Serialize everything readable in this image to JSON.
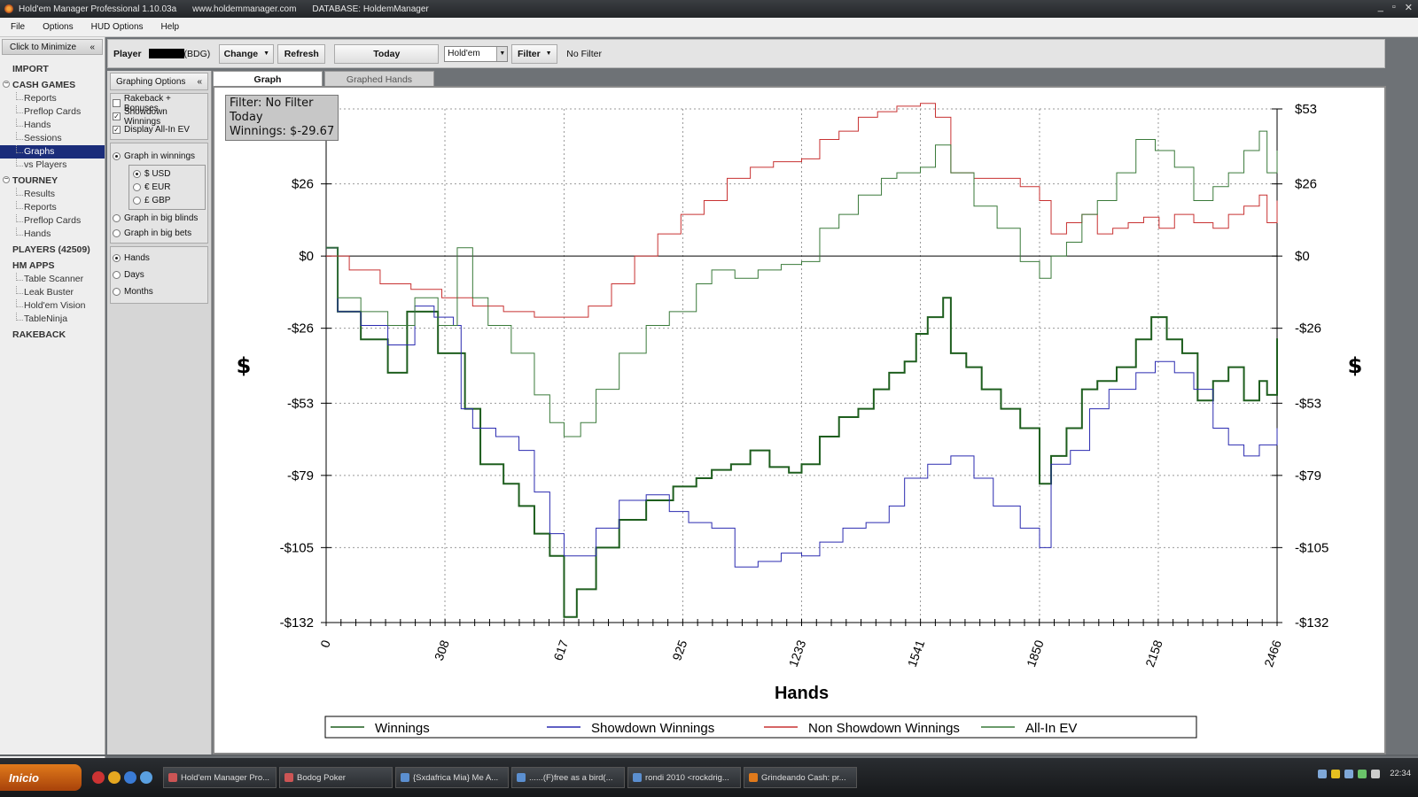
{
  "window": {
    "title": "Hold'em Manager Professional 1.10.03a",
    "url": "www.holdemmanager.com",
    "database": "DATABASE: HoldemManager",
    "controls": [
      "_",
      "▫",
      "✕"
    ]
  },
  "menu": [
    "File",
    "Options",
    "HUD Options",
    "Help"
  ],
  "sidebar": {
    "minimize_label": "Click to Minimize",
    "minimize_icon": "«",
    "sections": [
      {
        "label": "IMPORT",
        "items": []
      },
      {
        "label": "CASH GAMES",
        "expand": "−",
        "items": [
          "Reports",
          "Preflop Cards",
          "Hands",
          "Sessions",
          "Graphs",
          "vs Players"
        ]
      },
      {
        "label": "TOURNEY",
        "expand": "−",
        "items": [
          "Results",
          "Reports",
          "Preflop Cards",
          "Hands"
        ]
      },
      {
        "label": "PLAYERS (42509)",
        "items": []
      },
      {
        "label": "HM APPS",
        "items": [
          "Table Scanner",
          "Leak Buster",
          "Hold'em Vision",
          "TableNinja"
        ]
      },
      {
        "label": "RAKEBACK",
        "items": []
      }
    ],
    "active_item": "Graphs"
  },
  "toolbar": {
    "player_label": "Player",
    "player_site": "(BDG)",
    "change_label": "Change",
    "refresh_label": "Refresh",
    "date_label": "Today",
    "game_select": "Hold'em",
    "filter_label": "Filter",
    "filter_status": "No Filter"
  },
  "options": {
    "header": "Graphing Options",
    "collapse_icon": "«",
    "checkboxes": [
      {
        "label": "Rakeback + Bonuses",
        "checked": false
      },
      {
        "label": "Showdown Winnings",
        "checked": true
      },
      {
        "label": "Display All-In EV",
        "checked": true
      }
    ],
    "graph_in_winnings": "Graph in winnings",
    "currencies": [
      {
        "label": "$ USD",
        "selected": true
      },
      {
        "label": "€ EUR",
        "selected": false
      },
      {
        "label": "£ GBP",
        "selected": false
      }
    ],
    "graph_in_big_blinds": "Graph in big blinds",
    "graph_in_big_bets": "Graph in big bets",
    "x_axis_options": [
      {
        "label": "Hands",
        "selected": true
      },
      {
        "label": "Days",
        "selected": false
      },
      {
        "label": "Months",
        "selected": false
      }
    ]
  },
  "tabs": [
    {
      "label": "Graph",
      "active": true
    },
    {
      "label": "Graphed Hands",
      "active": false
    }
  ],
  "info_box": {
    "line1": "Filter: No Filter",
    "line2": "Today",
    "line3": "Winnings: $-29.67"
  },
  "chart_data": {
    "type": "line",
    "xlabel": "Hands",
    "ylabel": "$",
    "xlim": [
      0,
      2466
    ],
    "ylim": [
      -132,
      53
    ],
    "x_ticks": [
      0,
      308,
      617,
      925,
      1233,
      1541,
      1850,
      2158,
      2466
    ],
    "y_ticks": [
      53,
      26,
      0,
      -26,
      -53,
      -79,
      -105,
      -132
    ],
    "y_tick_labels": [
      "$53",
      "$26",
      "$0",
      "-$26",
      "-$53",
      "-$79",
      "-$105",
      "-$132"
    ],
    "grid": true,
    "legend_position": "bottom",
    "series": [
      {
        "name": "Winnings",
        "color": "#1e5e1e",
        "width": 2,
        "points": [
          [
            0,
            3
          ],
          [
            30,
            -20
          ],
          [
            90,
            -30
          ],
          [
            160,
            -42
          ],
          [
            210,
            -20
          ],
          [
            290,
            -35
          ],
          [
            340,
            -35
          ],
          [
            360,
            -55
          ],
          [
            400,
            -75
          ],
          [
            460,
            -82
          ],
          [
            500,
            -90
          ],
          [
            540,
            -100
          ],
          [
            580,
            -108
          ],
          [
            617,
            -130
          ],
          [
            650,
            -120
          ],
          [
            700,
            -105
          ],
          [
            760,
            -95
          ],
          [
            830,
            -88
          ],
          [
            900,
            -83
          ],
          [
            960,
            -80
          ],
          [
            1000,
            -77
          ],
          [
            1050,
            -75
          ],
          [
            1100,
            -70
          ],
          [
            1150,
            -76
          ],
          [
            1200,
            -78
          ],
          [
            1233,
            -75
          ],
          [
            1280,
            -65
          ],
          [
            1330,
            -58
          ],
          [
            1380,
            -55
          ],
          [
            1420,
            -48
          ],
          [
            1460,
            -42
          ],
          [
            1500,
            -38
          ],
          [
            1530,
            -28
          ],
          [
            1560,
            -22
          ],
          [
            1600,
            -15
          ],
          [
            1620,
            -35
          ],
          [
            1660,
            -40
          ],
          [
            1700,
            -48
          ],
          [
            1750,
            -55
          ],
          [
            1800,
            -62
          ],
          [
            1850,
            -82
          ],
          [
            1880,
            -72
          ],
          [
            1920,
            -62
          ],
          [
            1960,
            -48
          ],
          [
            2000,
            -45
          ],
          [
            2050,
            -40
          ],
          [
            2100,
            -30
          ],
          [
            2140,
            -22
          ],
          [
            2180,
            -30
          ],
          [
            2220,
            -35
          ],
          [
            2260,
            -52
          ],
          [
            2300,
            -45
          ],
          [
            2340,
            -40
          ],
          [
            2380,
            -52
          ],
          [
            2420,
            -45
          ],
          [
            2440,
            -50
          ],
          [
            2466,
            -29.67
          ]
        ]
      },
      {
        "name": "Showdown Winnings",
        "color": "#2b2bb0",
        "width": 1,
        "points": [
          [
            0,
            3
          ],
          [
            30,
            -20
          ],
          [
            90,
            -25
          ],
          [
            160,
            -32
          ],
          [
            230,
            -18
          ],
          [
            280,
            -22
          ],
          [
            330,
            -25
          ],
          [
            350,
            -55
          ],
          [
            380,
            -62
          ],
          [
            440,
            -65
          ],
          [
            500,
            -70
          ],
          [
            540,
            -85
          ],
          [
            580,
            -100
          ],
          [
            617,
            -108
          ],
          [
            660,
            -108
          ],
          [
            700,
            -98
          ],
          [
            760,
            -88
          ],
          [
            830,
            -86
          ],
          [
            890,
            -92
          ],
          [
            940,
            -96
          ],
          [
            1000,
            -98
          ],
          [
            1060,
            -112
          ],
          [
            1120,
            -110
          ],
          [
            1180,
            -107
          ],
          [
            1233,
            -108
          ],
          [
            1280,
            -103
          ],
          [
            1340,
            -98
          ],
          [
            1400,
            -96
          ],
          [
            1460,
            -90
          ],
          [
            1500,
            -80
          ],
          [
            1560,
            -75
          ],
          [
            1620,
            -72
          ],
          [
            1680,
            -80
          ],
          [
            1730,
            -90
          ],
          [
            1800,
            -98
          ],
          [
            1850,
            -105
          ],
          [
            1880,
            -75
          ],
          [
            1930,
            -70
          ],
          [
            1980,
            -55
          ],
          [
            2030,
            -48
          ],
          [
            2100,
            -42
          ],
          [
            2150,
            -38
          ],
          [
            2200,
            -42
          ],
          [
            2250,
            -48
          ],
          [
            2300,
            -62
          ],
          [
            2340,
            -68
          ],
          [
            2380,
            -72
          ],
          [
            2420,
            -68
          ],
          [
            2466,
            -62
          ]
        ]
      },
      {
        "name": "Non Showdown Winnings",
        "color": "#c83232",
        "width": 1,
        "points": [
          [
            0,
            0
          ],
          [
            60,
            -5
          ],
          [
            140,
            -10
          ],
          [
            220,
            -12
          ],
          [
            300,
            -15
          ],
          [
            380,
            -18
          ],
          [
            460,
            -20
          ],
          [
            540,
            -22
          ],
          [
            617,
            -22
          ],
          [
            680,
            -18
          ],
          [
            740,
            -10
          ],
          [
            800,
            0
          ],
          [
            860,
            8
          ],
          [
            920,
            15
          ],
          [
            980,
            20
          ],
          [
            1040,
            28
          ],
          [
            1100,
            32
          ],
          [
            1160,
            34
          ],
          [
            1233,
            35
          ],
          [
            1280,
            42
          ],
          [
            1330,
            45
          ],
          [
            1380,
            50
          ],
          [
            1430,
            52
          ],
          [
            1480,
            54
          ],
          [
            1541,
            55
          ],
          [
            1580,
            50
          ],
          [
            1620,
            30
          ],
          [
            1680,
            28
          ],
          [
            1740,
            28
          ],
          [
            1800,
            25
          ],
          [
            1850,
            20
          ],
          [
            1880,
            8
          ],
          [
            1920,
            12
          ],
          [
            1960,
            15
          ],
          [
            2000,
            8
          ],
          [
            2040,
            10
          ],
          [
            2080,
            12
          ],
          [
            2120,
            14
          ],
          [
            2160,
            10
          ],
          [
            2200,
            15
          ],
          [
            2250,
            12
          ],
          [
            2300,
            10
          ],
          [
            2340,
            15
          ],
          [
            2380,
            18
          ],
          [
            2420,
            22
          ],
          [
            2440,
            12
          ],
          [
            2466,
            20
          ]
        ]
      },
      {
        "name": "All-In EV",
        "color": "#3a7a3a",
        "width": 1,
        "points": [
          [
            0,
            3
          ],
          [
            30,
            -15
          ],
          [
            90,
            -20
          ],
          [
            160,
            -25
          ],
          [
            230,
            -15
          ],
          [
            290,
            -25
          ],
          [
            340,
            3
          ],
          [
            380,
            -15
          ],
          [
            420,
            -25
          ],
          [
            480,
            -35
          ],
          [
            540,
            -50
          ],
          [
            580,
            -60
          ],
          [
            617,
            -65
          ],
          [
            660,
            -60
          ],
          [
            700,
            -48
          ],
          [
            760,
            -35
          ],
          [
            830,
            -25
          ],
          [
            890,
            -20
          ],
          [
            960,
            -10
          ],
          [
            1000,
            -5
          ],
          [
            1060,
            -8
          ],
          [
            1120,
            -5
          ],
          [
            1180,
            -3
          ],
          [
            1233,
            -2
          ],
          [
            1280,
            10
          ],
          [
            1330,
            15
          ],
          [
            1380,
            22
          ],
          [
            1440,
            28
          ],
          [
            1480,
            30
          ],
          [
            1541,
            32
          ],
          [
            1580,
            40
          ],
          [
            1620,
            30
          ],
          [
            1680,
            18
          ],
          [
            1740,
            10
          ],
          [
            1800,
            -2
          ],
          [
            1850,
            -8
          ],
          [
            1880,
            0
          ],
          [
            1920,
            5
          ],
          [
            1960,
            15
          ],
          [
            2000,
            20
          ],
          [
            2050,
            30
          ],
          [
            2100,
            42
          ],
          [
            2150,
            38
          ],
          [
            2200,
            32
          ],
          [
            2250,
            20
          ],
          [
            2300,
            25
          ],
          [
            2340,
            30
          ],
          [
            2380,
            38
          ],
          [
            2420,
            45
          ],
          [
            2440,
            30
          ],
          [
            2466,
            38
          ]
        ]
      }
    ]
  },
  "taskbar": {
    "start_label": "Inicio",
    "tasks": [
      "Hold'em Manager Pro...",
      "Bodog Poker",
      "{Sxdafrica Mia} Me A...",
      "......(F)free as a bird(...",
      "rondi 2010 <rockdrig...",
      "Grindeando Cash: pr..."
    ],
    "clock": "22:34"
  }
}
